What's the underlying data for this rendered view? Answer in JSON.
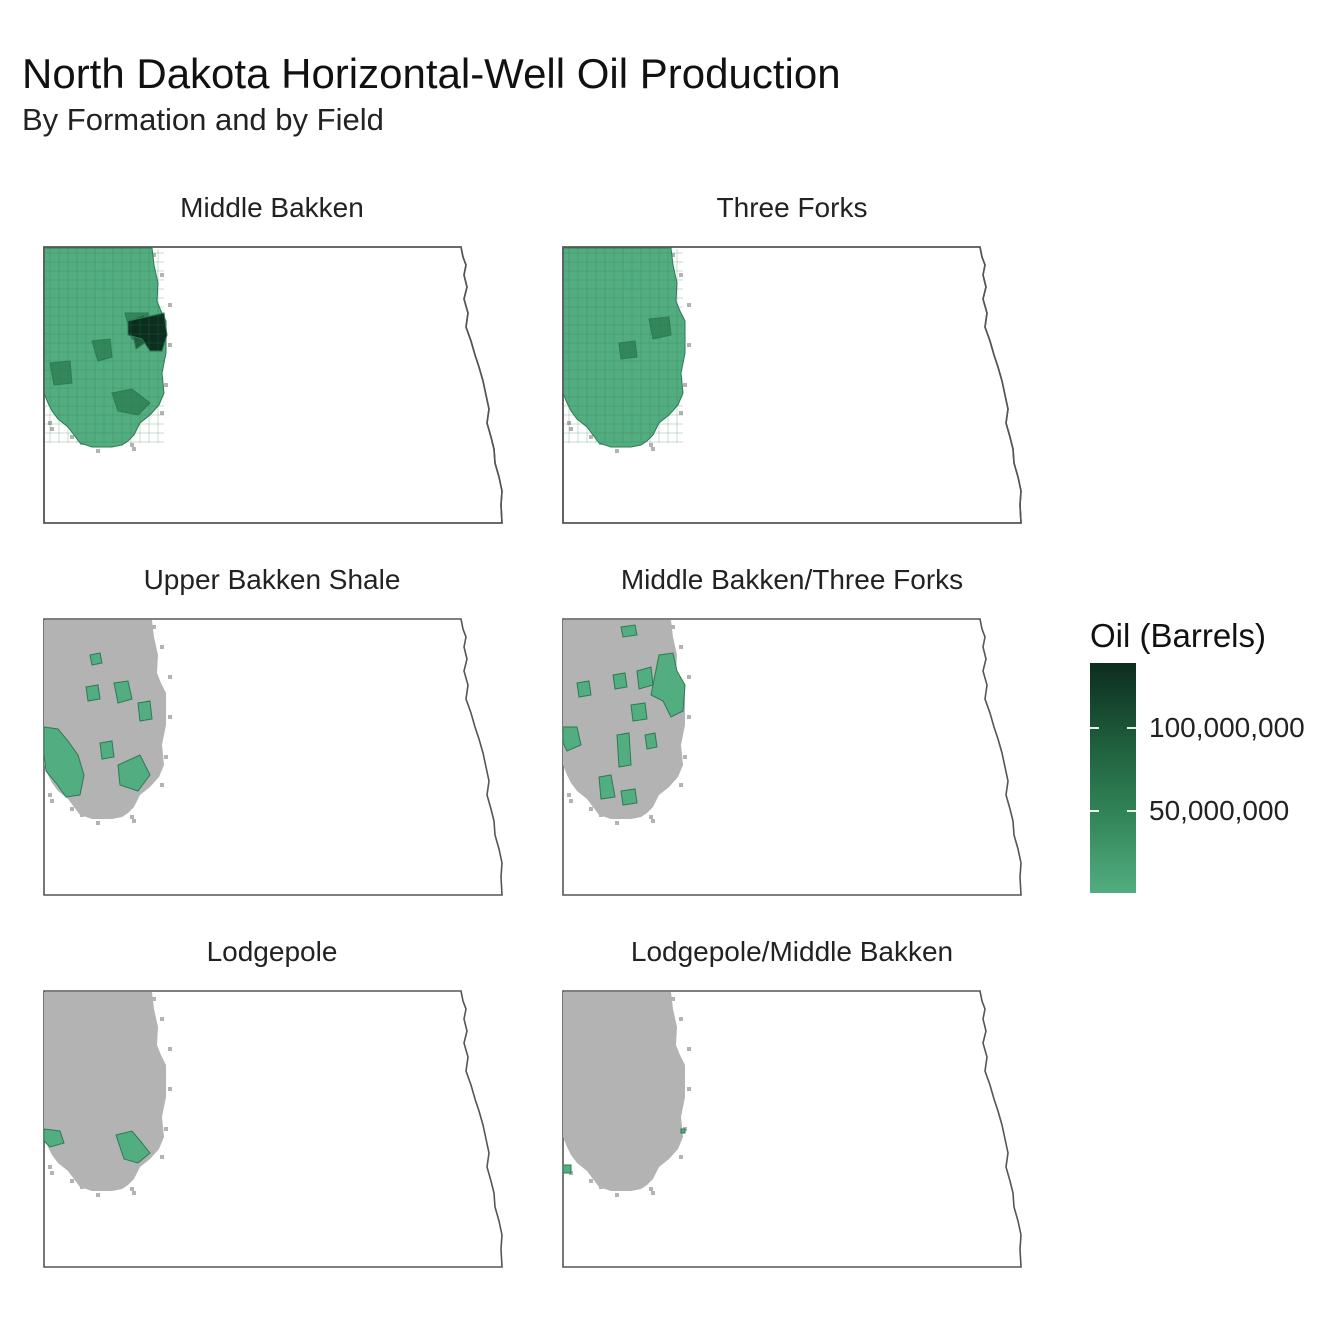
{
  "title": "North Dakota Horizontal-Well Oil Production",
  "subtitle": "By Formation and by Field",
  "panels": [
    {
      "label": "Middle Bakken",
      "level": "full"
    },
    {
      "label": "Three Forks",
      "level": "high"
    },
    {
      "label": "Upper Bakken Shale",
      "level": "partial"
    },
    {
      "label": "Middle Bakken/Three Forks",
      "level": "partial"
    },
    {
      "label": "Lodgepole",
      "level": "sparse"
    },
    {
      "label": "Lodgepole/Middle Bakken",
      "level": "none"
    }
  ],
  "legend": {
    "title": "Oil (Barrels)",
    "labels": [
      "100,000,000",
      "50,000,000"
    ]
  },
  "colors": {
    "no_production": "#b3b3b3",
    "low": "#52ad80",
    "mid": "#33875a",
    "high": "#1f5e3c",
    "max": "#0c2d1f",
    "state_outline": "#555555"
  }
}
